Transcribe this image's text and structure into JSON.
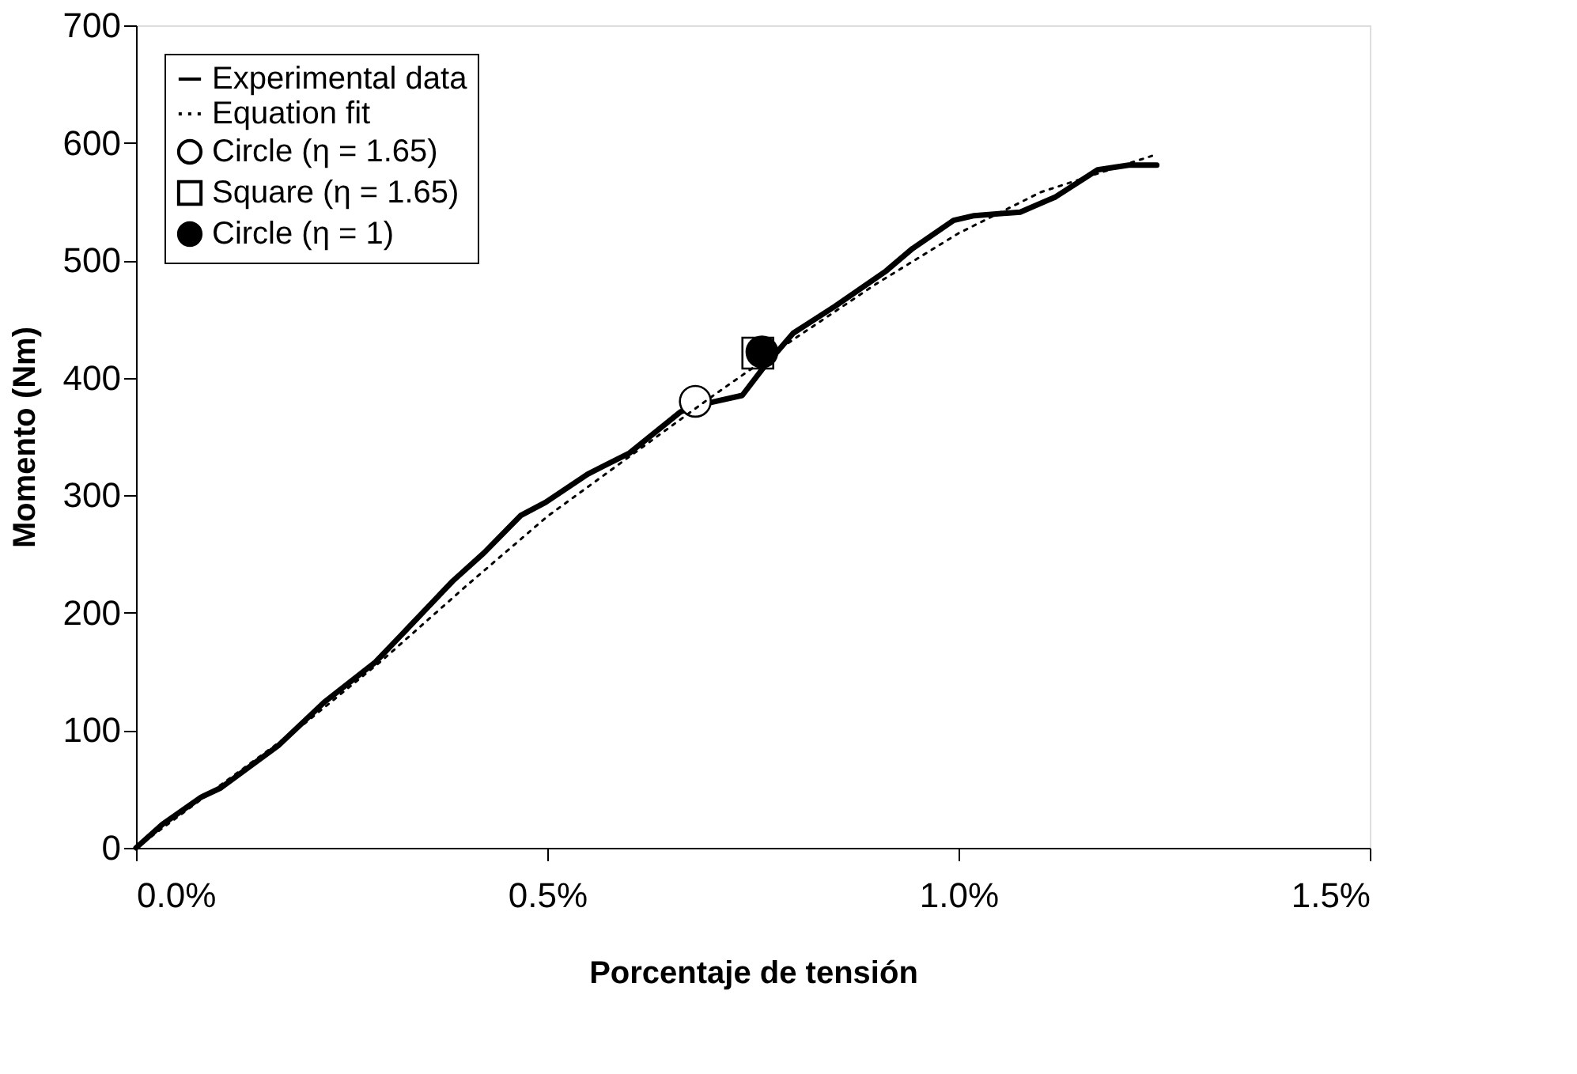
{
  "chart_data": {
    "type": "line",
    "xlabel": "Porcentaje de tensión",
    "ylabel": "Momento (Nm)",
    "xlim": [
      0,
      1.5
    ],
    "xticks": [
      {
        "value": 0,
        "label": "0.0%"
      },
      {
        "value": 0.5,
        "label": "0.5%"
      },
      {
        "value": 1.0,
        "label": "1.0%"
      },
      {
        "value": 1.5,
        "label": "1.5%"
      }
    ],
    "ylim": [
      0,
      700
    ],
    "yticks": [
      0,
      100,
      200,
      300,
      400,
      500,
      600,
      700
    ],
    "grid": false,
    "legend": "top left",
    "series": [
      {
        "name": "Experimental data",
        "type": "line",
        "line_style": "solid",
        "marker": "none",
        "color": "#000000",
        "x": [
          0,
          0.032,
          0.079,
          0.103,
          0.173,
          0.229,
          0.291,
          0.336,
          0.385,
          0.423,
          0.468,
          0.498,
          0.549,
          0.6,
          0.662,
          0.686,
          0.737,
          0.761,
          0.799,
          0.85,
          0.912,
          0.944,
          0.994,
          1.019,
          1.075,
          1.118,
          1.169,
          1.207,
          1.241
        ],
        "values": [
          0,
          20,
          43,
          51,
          87,
          124,
          158,
          191,
          227,
          251,
          283,
          294,
          318,
          336,
          371,
          377,
          385,
          407,
          438,
          461,
          491,
          510,
          534,
          538,
          541,
          554,
          577,
          581,
          581
        ]
      },
      {
        "name": "Equation fit",
        "type": "line",
        "line_style": "dotted",
        "marker": "none",
        "color": "#000000",
        "x": [
          0,
          0.1,
          0.2,
          0.3,
          0.4,
          0.5,
          0.6,
          0.7,
          0.8,
          0.9,
          1.0,
          1.1,
          1.24
        ],
        "values": [
          0,
          52,
          103,
          160,
          222,
          282,
          333,
          384,
          433,
          480,
          523,
          558,
          590
        ]
      },
      {
        "name": "Circle (η = 1.65)",
        "type": "scatter",
        "marker": "circle-open",
        "color": "#000000",
        "x": [
          0.68
        ],
        "values": [
          380
        ]
      },
      {
        "name": "Square (η = 1.65)",
        "type": "scatter",
        "marker": "square-open",
        "color": "#000000",
        "x": [
          0.756
        ],
        "values": [
          421
        ]
      },
      {
        "name": "Circle (η = 1)",
        "type": "scatter",
        "marker": "circle",
        "color": "#000000",
        "x": [
          0.761
        ],
        "values": [
          422
        ]
      }
    ]
  }
}
